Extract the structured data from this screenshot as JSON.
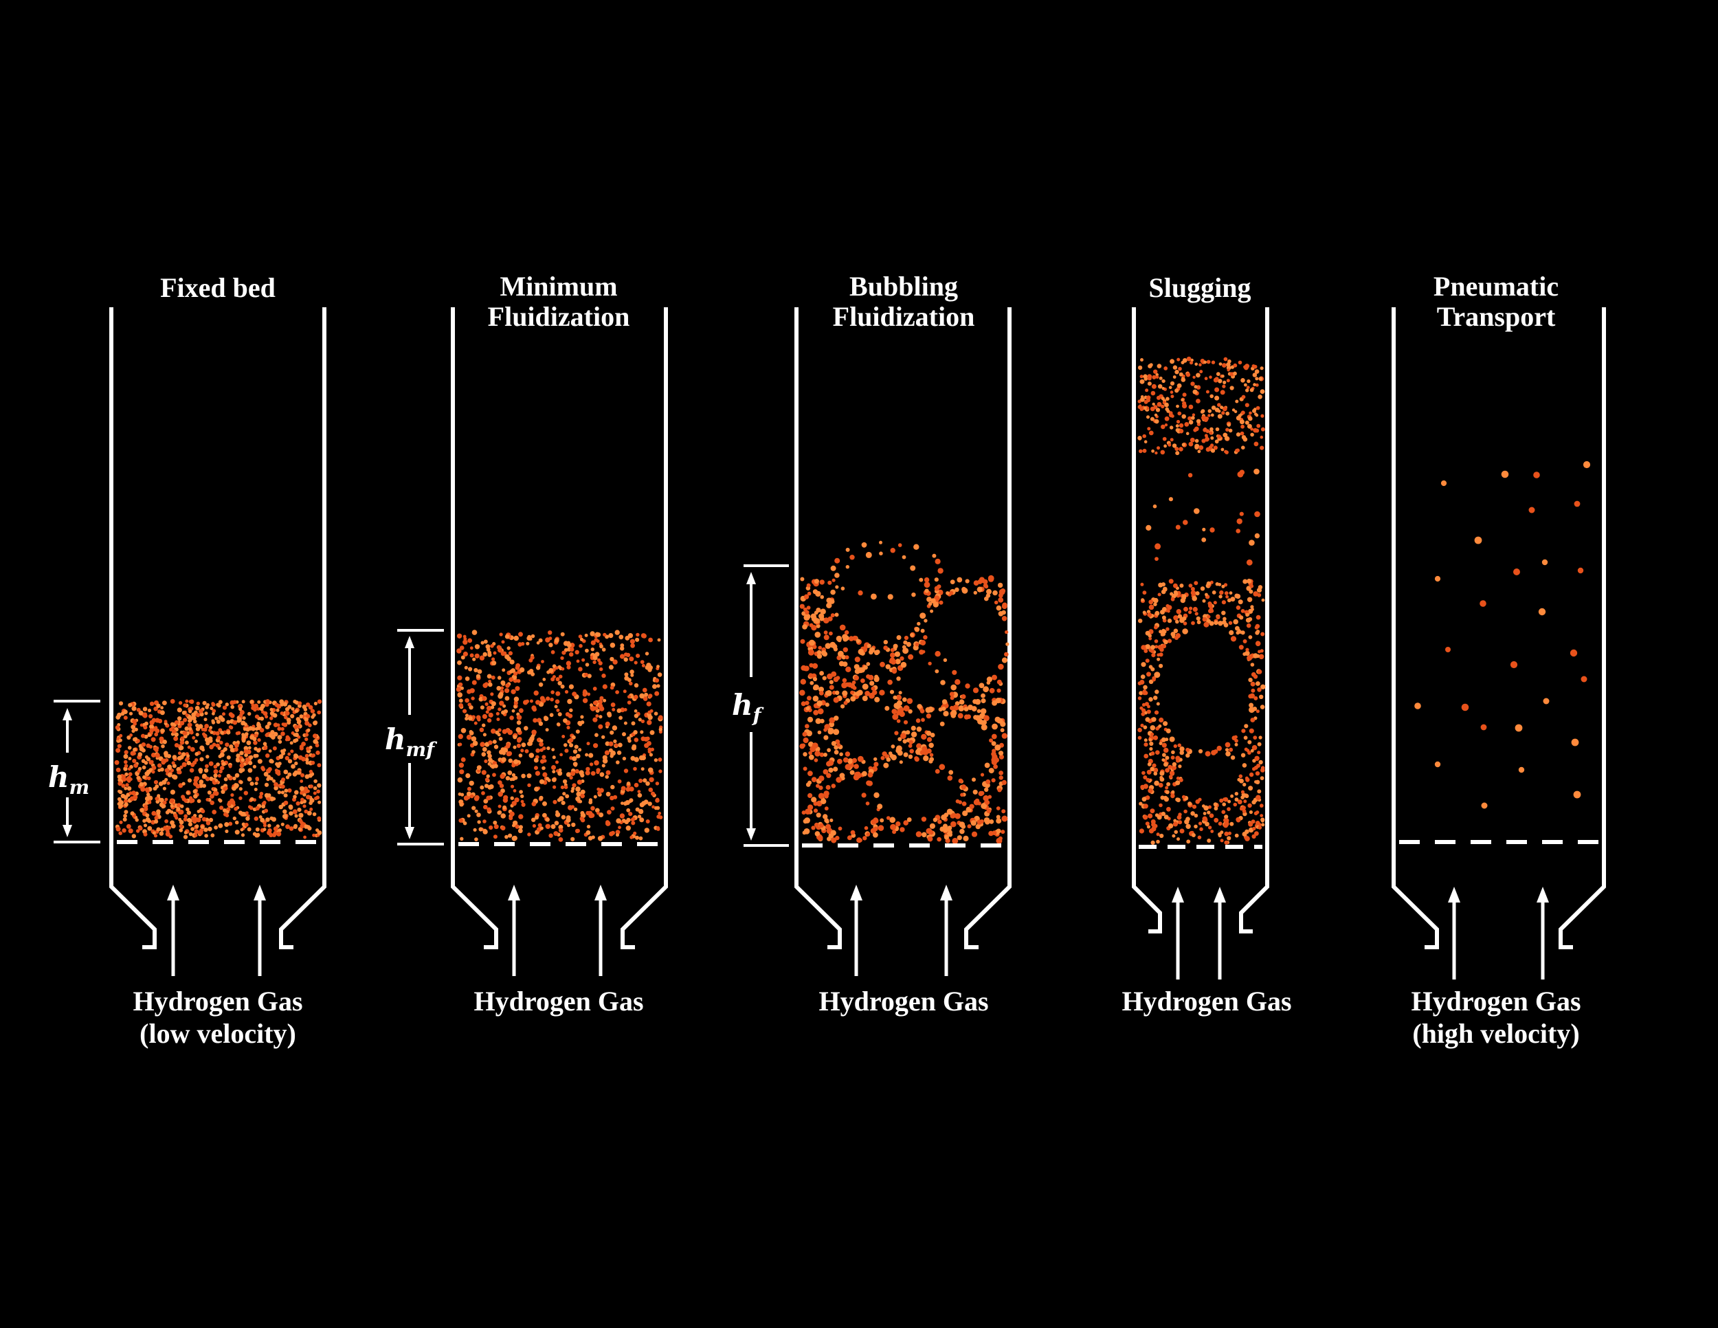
{
  "colors": {
    "background": "#000000",
    "line": "#ffffff",
    "particle": "#e8521b",
    "particle_light": "#ff8a3c"
  },
  "panels": [
    {
      "id": "fixed-bed",
      "title_lines": [
        "Fixed bed"
      ],
      "gas_lines": [
        "Hydrogen Gas",
        "(low velocity)"
      ],
      "height_label": "h",
      "height_sub": "m",
      "regime": "packed"
    },
    {
      "id": "minimum-fluidization",
      "title_lines": [
        "Minimum",
        "Fluidization"
      ],
      "gas_lines": [
        "Hydrogen Gas"
      ],
      "height_label": "h",
      "height_sub": "mf",
      "regime": "uniform"
    },
    {
      "id": "bubbling-fluidization",
      "title_lines": [
        "Bubbling",
        "Fluidization"
      ],
      "gas_lines": [
        "Hydrogen Gas"
      ],
      "height_label": "h",
      "height_sub": "f",
      "regime": "bubbling"
    },
    {
      "id": "slugging",
      "title_lines": [
        "Slugging"
      ],
      "gas_lines": [
        "Hydrogen Gas"
      ],
      "height_label": "",
      "height_sub": "",
      "regime": "slugging"
    },
    {
      "id": "pneumatic-transport",
      "title_lines": [
        "Pneumatic",
        "Transport"
      ],
      "gas_lines": [
        "Hydrogen Gas",
        "(high velocity)"
      ],
      "height_label": "",
      "height_sub": "",
      "regime": "dilute"
    }
  ]
}
